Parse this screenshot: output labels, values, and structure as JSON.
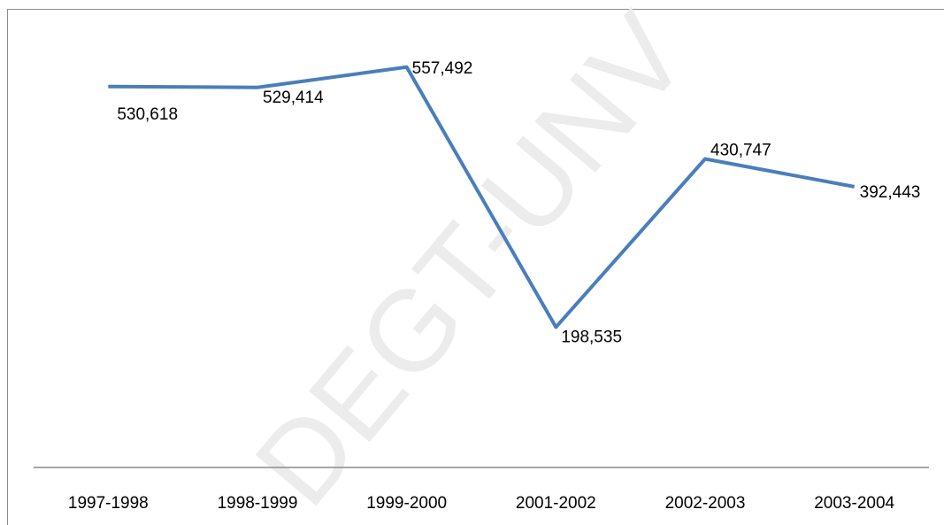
{
  "chart_data": {
    "type": "line",
    "watermark": "DEGT-UNV",
    "categories": [
      "1997-1998",
      "1998-1999",
      "1999-2000",
      "2001-2002",
      "2002-2003",
      "2003-2004"
    ],
    "values": [
      530618,
      529414,
      557492,
      198535,
      430747,
      392443
    ],
    "value_labels": [
      "530,618",
      "529,414",
      "557,492",
      "198,535",
      "430,747",
      "392,443"
    ],
    "color": "#4a7ebb",
    "ylim": [
      0,
      600000
    ]
  }
}
